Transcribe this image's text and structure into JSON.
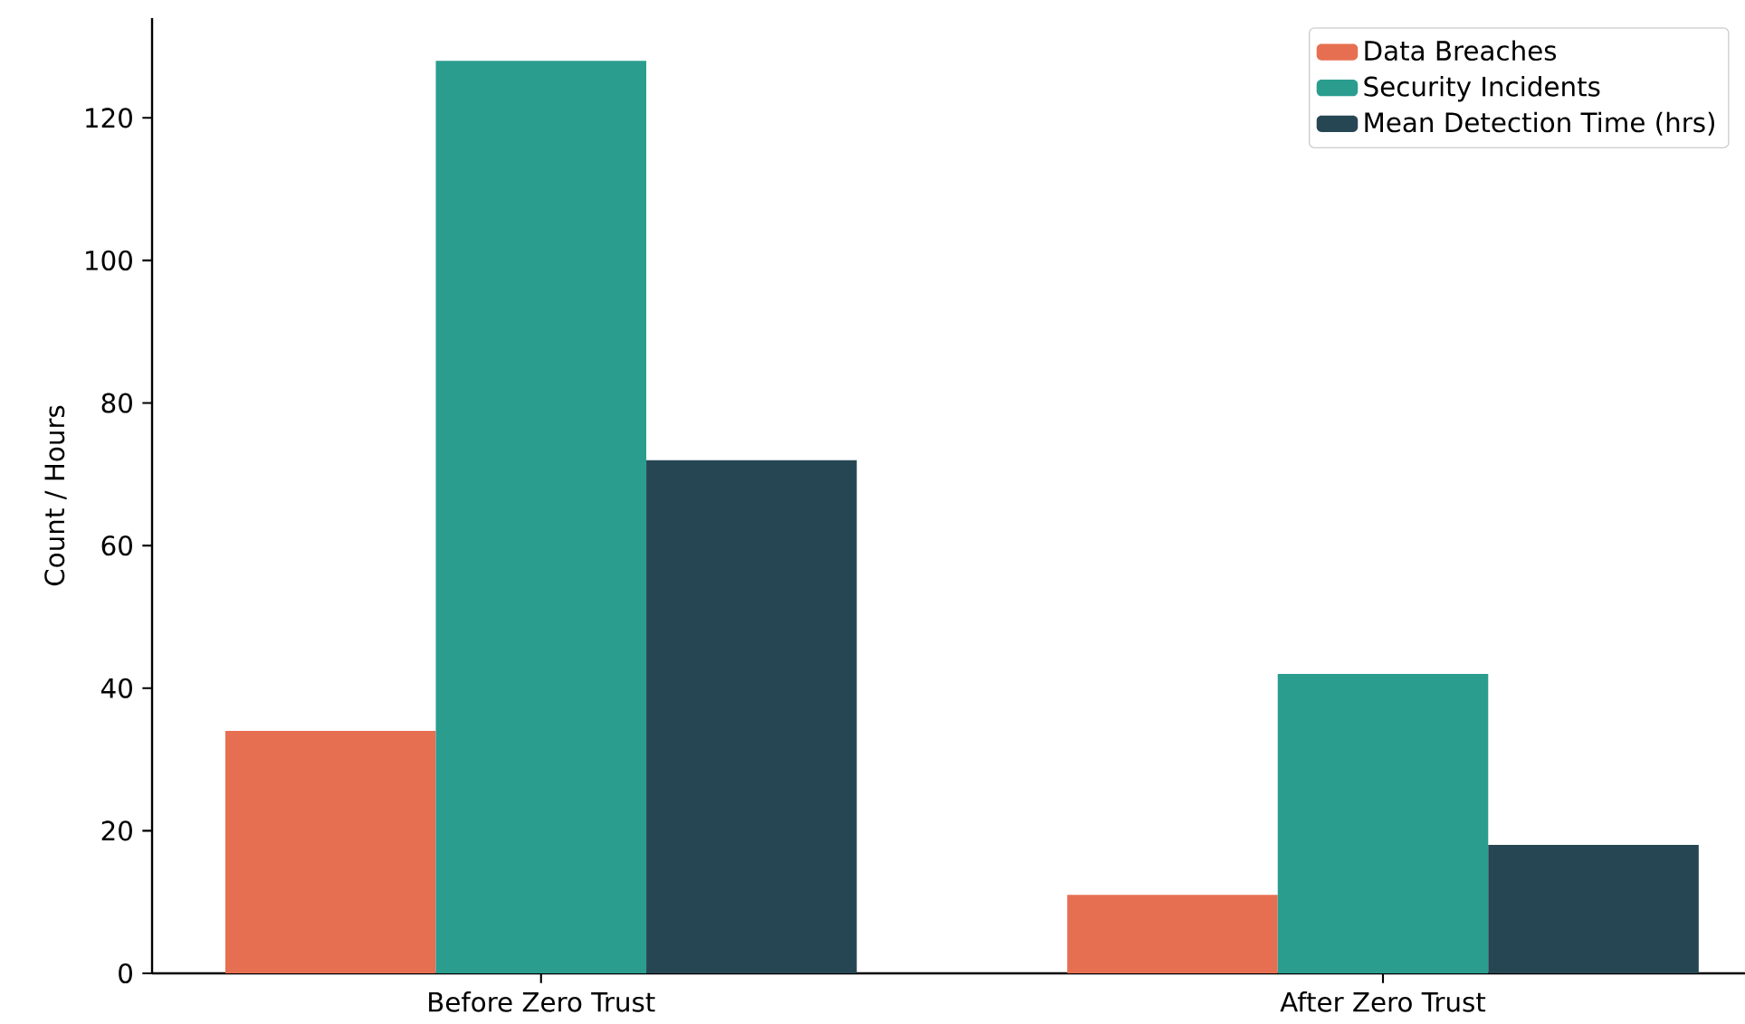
{
  "chart_data": {
    "type": "bar",
    "ylabel": "Count / Hours",
    "categories": [
      "Before Zero Trust",
      "After Zero Trust"
    ],
    "series": [
      {
        "name": "Data Breaches",
        "color": "#e76f51",
        "values": [
          34,
          11
        ]
      },
      {
        "name": "Security Incidents",
        "color": "#2a9d8f",
        "values": [
          128,
          42
        ]
      },
      {
        "name": "Mean Detection Time (hrs)",
        "color": "#264653",
        "values": [
          72,
          18
        ]
      }
    ],
    "ylim": [
      0,
      134
    ],
    "yticks": [
      0,
      20,
      40,
      60,
      80,
      100,
      120
    ],
    "grid": false,
    "legend": "top right"
  }
}
